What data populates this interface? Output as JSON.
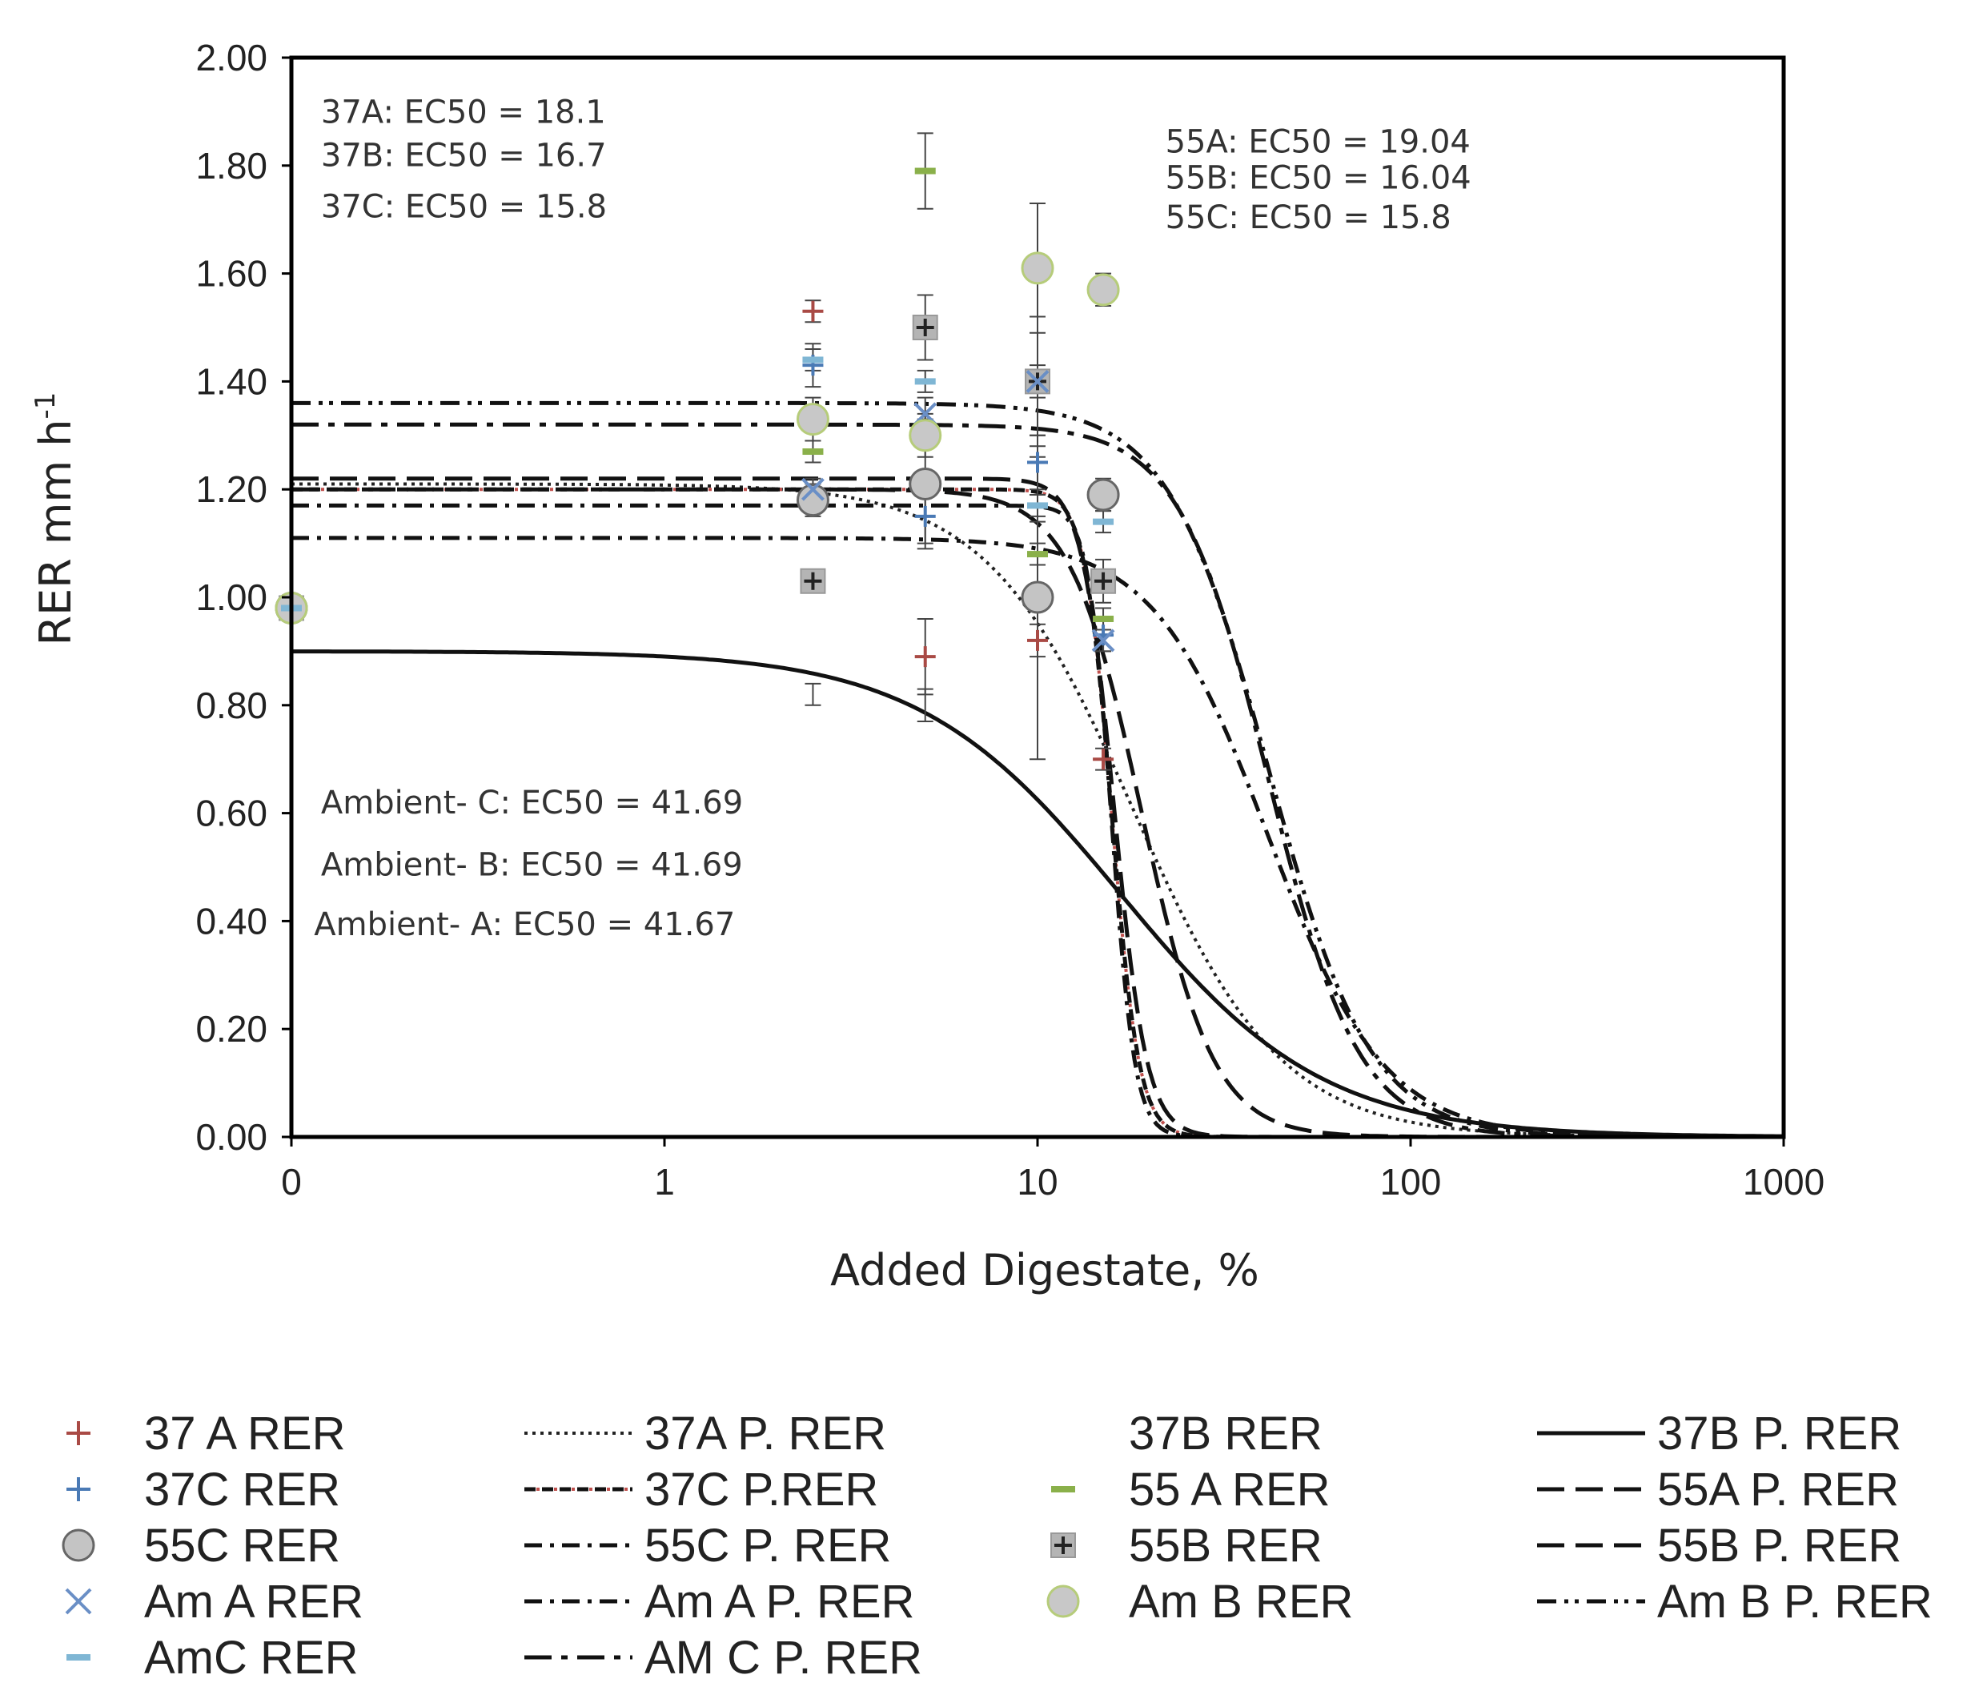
{
  "chart_data": {
    "type": "scatter",
    "xlabel": "Added Digestate, %",
    "ylabel": "RER mm h",
    "ylabel_superscript": "-1",
    "xscale": "log",
    "xlim": [
      0.1,
      1000
    ],
    "ylim": [
      0,
      2.0
    ],
    "x_ticks": [
      {
        "value": 0.1,
        "label": "0"
      },
      {
        "value": 1,
        "label": "1"
      },
      {
        "value": 10,
        "label": "10"
      },
      {
        "value": 100,
        "label": "100"
      },
      {
        "value": 1000,
        "label": "1000"
      }
    ],
    "y_ticks": [
      {
        "value": 0.0,
        "label": "0.00"
      },
      {
        "value": 0.2,
        "label": "0.20"
      },
      {
        "value": 0.4,
        "label": "0.40"
      },
      {
        "value": 0.6,
        "label": "0.60"
      },
      {
        "value": 0.8,
        "label": "0.80"
      },
      {
        "value": 1.0,
        "label": "1.00"
      },
      {
        "value": 1.2,
        "label": "1.20"
      },
      {
        "value": 1.4,
        "label": "1.40"
      },
      {
        "value": 1.6,
        "label": "1.60"
      },
      {
        "value": 1.8,
        "label": "1.80"
      },
      {
        "value": 2.0,
        "label": "2.00"
      }
    ],
    "grid": false,
    "legend_position": "bottom",
    "annotations": [
      {
        "text": "37A: EC50 = 18.1",
        "x": 0.12,
        "y": 1.9
      },
      {
        "text": "37B: EC50 = 16.7",
        "x": 0.12,
        "y": 1.82
      },
      {
        "text": "37C: EC50 = 15.8",
        "x": 0.12,
        "y": 1.725
      },
      {
        "text": "55A: EC50 = 19.04",
        "x": 22,
        "y": 1.845
      },
      {
        "text": "55B: EC50 = 16.04",
        "x": 22,
        "y": 1.778
      },
      {
        "text": "55C: EC50 = 15.8",
        "x": 22,
        "y": 1.705
      },
      {
        "text": "Ambient- C: EC50 = 41.69",
        "x": 0.12,
        "y": 0.62
      },
      {
        "text": "Ambient- B: EC50 = 41.69",
        "x": 0.12,
        "y": 0.505
      },
      {
        "text": "Ambient- A: EC50 = 41.67",
        "x": 0.115,
        "y": 0.395
      }
    ],
    "point_series": [
      {
        "name": "37 A RER",
        "marker": "plus",
        "color": "#a94a45",
        "points": [
          [
            0.1,
            0.98
          ],
          [
            2.5,
            1.53
          ],
          [
            5,
            0.89
          ],
          [
            10,
            0.92
          ],
          [
            15,
            0.7
          ]
        ],
        "errors": [
          [
            0,
            0
          ],
          [
            0.02,
            0.02
          ],
          [
            0.07,
            0.07
          ],
          [
            0.03,
            0.03
          ],
          [
            0.02,
            0.02
          ]
        ]
      },
      {
        "name": "37B RER",
        "marker": "none",
        "color": "#333333",
        "points": [
          [
            2.5,
            0.82
          ],
          [
            5,
            0.8
          ],
          [
            10,
            1.2
          ]
        ],
        "errors": [
          [
            0.02,
            0.02
          ],
          [
            0.03,
            0.03
          ],
          [
            0.06,
            0.06
          ]
        ]
      },
      {
        "name": "37C RER",
        "marker": "plus",
        "color": "#4a7ab5",
        "points": [
          [
            0.1,
            0.98
          ],
          [
            2.5,
            1.43
          ],
          [
            5,
            1.15
          ],
          [
            10,
            1.25
          ],
          [
            15,
            0.93
          ]
        ],
        "errors": [
          [
            0,
            0
          ],
          [
            0.04,
            0.04
          ],
          [
            0.05,
            0.05
          ],
          [
            0.05,
            0.05
          ],
          [
            0.03,
            0.03
          ]
        ]
      },
      {
        "name": "55 A RER",
        "marker": "dash",
        "color": "#8ab04a",
        "points": [
          [
            0.1,
            0.98
          ],
          [
            2.5,
            1.27
          ],
          [
            5,
            1.79
          ],
          [
            10,
            1.08
          ],
          [
            15,
            0.96
          ]
        ],
        "errors": [
          [
            0,
            0
          ],
          [
            0.02,
            0.02
          ],
          [
            0.07,
            0.07
          ],
          [
            0.02,
            0.02
          ],
          [
            0.02,
            0.02
          ]
        ]
      },
      {
        "name": "55C RER",
        "marker": "circle",
        "color": "#666666",
        "fill": "#c4c4c4",
        "points": [
          [
            0.1,
            0.98
          ],
          [
            2.5,
            1.18
          ],
          [
            5,
            1.21
          ],
          [
            10,
            1.0
          ],
          [
            15,
            1.19
          ]
        ],
        "errors": [
          [
            0,
            0
          ],
          [
            0.03,
            0.03
          ],
          [
            0.12,
            0.12
          ],
          [
            0.3,
            0.3
          ],
          [
            0.03,
            0.03
          ]
        ]
      },
      {
        "name": "55B RER",
        "marker": "square-plus",
        "color": "#222222",
        "fill": "#b4b4b4",
        "points": [
          [
            0.1,
            0.98
          ],
          [
            2.5,
            1.03
          ],
          [
            5,
            1.5
          ],
          [
            10,
            1.4
          ],
          [
            15,
            1.03
          ]
        ],
        "errors": [
          [
            0,
            0
          ],
          [
            0.01,
            0.01
          ],
          [
            0.06,
            0.06
          ],
          [
            0.12,
            0.12
          ],
          [
            0.04,
            0.04
          ]
        ]
      },
      {
        "name": "Am A RER",
        "marker": "x",
        "color": "#6a8fc6",
        "points": [
          [
            0.1,
            0.98
          ],
          [
            2.5,
            1.2
          ],
          [
            5,
            1.34
          ],
          [
            10,
            1.4
          ],
          [
            15,
            0.92
          ]
        ],
        "errors": [
          [
            0,
            0
          ],
          [
            0.02,
            0.02
          ],
          [
            0.03,
            0.03
          ],
          [
            0.03,
            0.03
          ],
          [
            0.02,
            0.02
          ]
        ]
      },
      {
        "name": "Am B RER",
        "marker": "circle",
        "color": "#b6cc7a",
        "fill": "#c8c8c8",
        "points": [
          [
            0.1,
            0.98
          ],
          [
            2.5,
            1.33
          ],
          [
            5,
            1.3
          ],
          [
            10,
            1.61
          ],
          [
            15,
            1.57
          ]
        ],
        "errors": [
          [
            0,
            0
          ],
          [
            0.04,
            0.04
          ],
          [
            0.04,
            0.04
          ],
          [
            0.12,
            0.12
          ],
          [
            0.03,
            0.03
          ]
        ]
      },
      {
        "name": "AmC RER",
        "marker": "dash",
        "color": "#7fb6d4",
        "points": [
          [
            0.1,
            0.98
          ],
          [
            2.5,
            1.44
          ],
          [
            5,
            1.4
          ],
          [
            10,
            1.17
          ],
          [
            15,
            1.14
          ]
        ],
        "errors": [
          [
            0,
            0
          ],
          [
            0.02,
            0.02
          ],
          [
            0.02,
            0.02
          ],
          [
            0.02,
            0.02
          ],
          [
            0.02,
            0.02
          ]
        ]
      }
    ],
    "curve_series": [
      {
        "name": "37A P. RER",
        "style": "dotted",
        "top": 1.21,
        "ec50": 18.1,
        "slope": 2.2
      },
      {
        "name": "37B P. RER",
        "style": "solid",
        "top": 0.9,
        "ec50": 16.7,
        "slope": 1.6
      },
      {
        "name": "37C P.RER",
        "style": "dash-red",
        "top": 1.2,
        "ec50": 15.8,
        "slope": 12
      },
      {
        "name": "55A P. RER",
        "style": "longdash",
        "top": 1.2,
        "ec50": 19.04,
        "slope": 4.5
      },
      {
        "name": "55C P. RER",
        "style": "dashdot",
        "top": 1.17,
        "ec50": 15.8,
        "slope": 14
      },
      {
        "name": "55B P. RER",
        "style": "longdash",
        "top": 1.22,
        "ec50": 16.04,
        "slope": 10
      },
      {
        "name": "Am A P. RER",
        "style": "dashdot",
        "top": 1.11,
        "ec50": 41.67,
        "slope": 2.8
      },
      {
        "name": "Am B P. RER",
        "style": "dashdotdot",
        "top": 1.36,
        "ec50": 41.69,
        "slope": 3.2
      },
      {
        "name": "AM C P. RER",
        "style": "longdashdot",
        "top": 1.32,
        "ec50": 41.69,
        "slope": 3.6
      }
    ],
    "legend": [
      {
        "label": "37 A RER",
        "kind": "marker",
        "marker": "plus",
        "color": "#a94a45"
      },
      {
        "label": "37A P. RER",
        "kind": "line",
        "style": "dotted"
      },
      {
        "label": "37B RER",
        "kind": "marker",
        "marker": "none",
        "color": "#333333"
      },
      {
        "label": "37B P. RER",
        "kind": "line",
        "style": "solid"
      },
      {
        "label": "37C RER",
        "kind": "marker",
        "marker": "plus",
        "color": "#4a7ab5"
      },
      {
        "label": "37C P.RER",
        "kind": "line",
        "style": "dash-red"
      },
      {
        "label": "55 A RER",
        "kind": "marker",
        "marker": "dash",
        "color": "#8ab04a"
      },
      {
        "label": "55A P. RER",
        "kind": "line",
        "style": "longdash"
      },
      {
        "label": "55C RER",
        "kind": "marker",
        "marker": "circle",
        "color": "#666666",
        "fill": "#c4c4c4"
      },
      {
        "label": "55C P. RER",
        "kind": "line",
        "style": "dashdot"
      },
      {
        "label": "55B RER",
        "kind": "marker",
        "marker": "square-plus",
        "color": "#222222",
        "fill": "#b4b4b4"
      },
      {
        "label": "55B P. RER",
        "kind": "line",
        "style": "longdash"
      },
      {
        "label": "Am A RER",
        "kind": "marker",
        "marker": "x",
        "color": "#6a8fc6"
      },
      {
        "label": "Am A P. RER",
        "kind": "line",
        "style": "dashdot"
      },
      {
        "label": "Am B RER",
        "kind": "marker",
        "marker": "circle",
        "color": "#b6cc7a",
        "fill": "#c8c8c8"
      },
      {
        "label": "Am B P. RER",
        "kind": "line",
        "style": "dashdotdot"
      },
      {
        "label": "AmC RER",
        "kind": "marker",
        "marker": "dash",
        "color": "#7fb6d4"
      },
      {
        "label": "AM C P. RER",
        "kind": "line",
        "style": "longdashdot"
      }
    ]
  }
}
